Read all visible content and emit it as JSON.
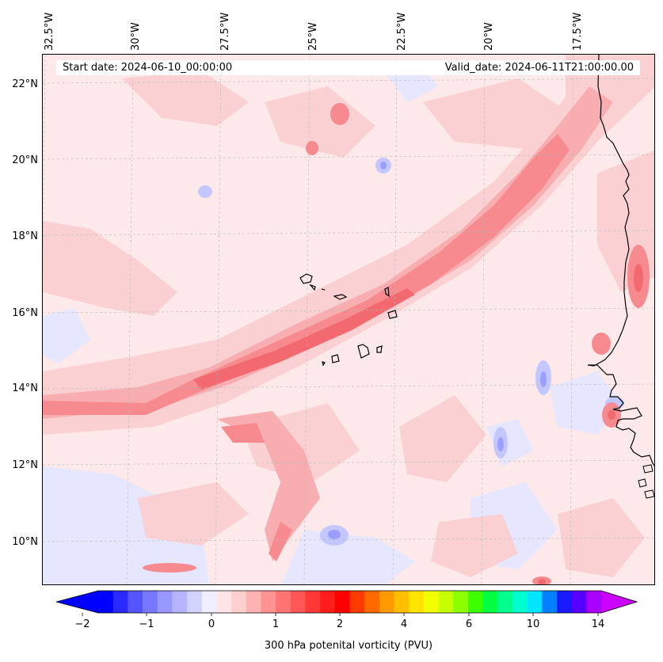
{
  "header": {
    "start_date": "Start date: 2024-06-10_00:00:00",
    "valid_date": "Valid_date: 2024-06-11T21:00:00.00"
  },
  "map": {
    "lon_labels": [
      "32.5°W",
      "30°W",
      "27.5°W",
      "25°W",
      "22.5°W",
      "20°W",
      "17.5°W"
    ],
    "lat_labels": [
      "22°N",
      "20°N",
      "18°N",
      "16°N",
      "14°N",
      "12°N",
      "10°N"
    ],
    "colors": {
      "background": "#fde9ea",
      "light_blue": "#d9dcff",
      "mid_blue": "#a9adff",
      "pink_1": "#fbd0d2",
      "pink_2": "#f8aeb1",
      "pink_3": "#f68a8e",
      "red_core": "#f26a70",
      "coast": "#000000"
    }
  },
  "colorbar": {
    "title": "300 hPa potenital vorticity (PVU)",
    "tick_labels": [
      "−2",
      "−1",
      "0",
      "1",
      "2",
      "4",
      "6",
      "10",
      "14"
    ],
    "colors": [
      "#0000ff",
      "#2a2aff",
      "#5555ff",
      "#7777ff",
      "#9898ff",
      "#b4b4ff",
      "#d2d2ff",
      "#eeeeff",
      "#ffe5e5",
      "#ffcfcf",
      "#ffb2b2",
      "#ff9393",
      "#ff7575",
      "#ff5656",
      "#ff3838",
      "#ff1c1c",
      "#ff0000",
      "#ff3a00",
      "#ff6a00",
      "#ff9900",
      "#ffbf00",
      "#ffe400",
      "#f2ff00",
      "#c8ff00",
      "#8cff00",
      "#3cff00",
      "#00ff40",
      "#00ff8c",
      "#00ffcc",
      "#00e5ff",
      "#0080ff",
      "#1a1aff",
      "#5500ff",
      "#aa00ff"
    ],
    "extend_left_color": "#0000ff",
    "extend_right_color": "#cc00ff"
  }
}
